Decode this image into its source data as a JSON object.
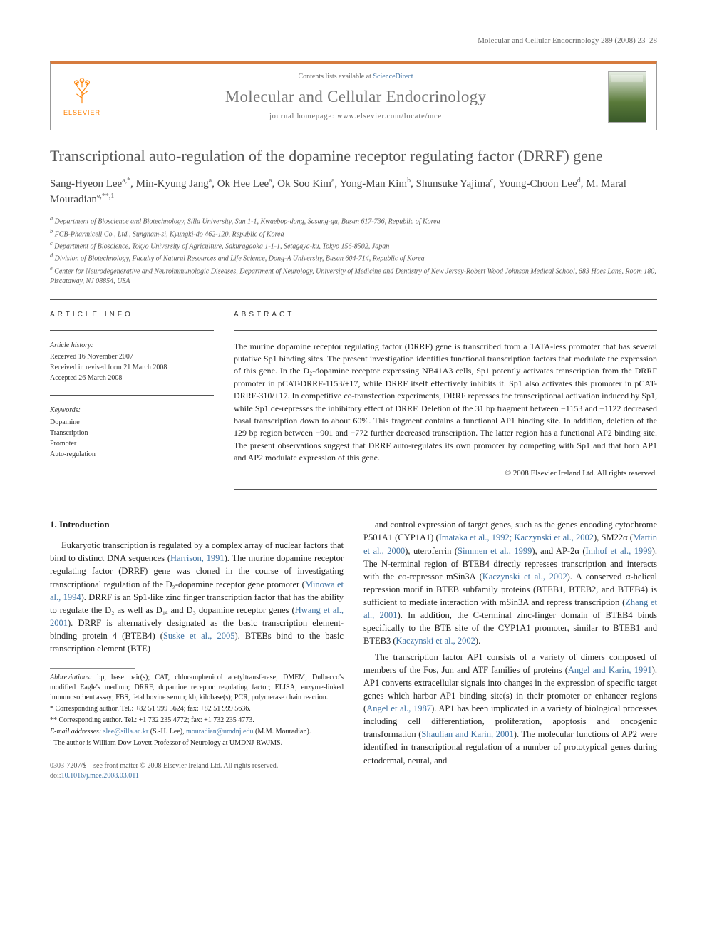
{
  "page_header": "Molecular and Cellular Endocrinology 289 (2008) 23–28",
  "banner": {
    "logo_label": "ELSEVIER",
    "contents_prefix": "Contents lists available at ",
    "contents_link": "ScienceDirect",
    "journal_name": "Molecular and Cellular Endocrinology",
    "homepage": "journal homepage: www.elsevier.com/locate/mce"
  },
  "title": "Transcriptional auto-regulation of the dopamine receptor regulating factor (DRRF) gene",
  "authors_html": "Sang-Hyeon Lee<sup>a,*</sup>, Min-Kyung Jang<sup>a</sup>, Ok Hee Lee<sup>a</sup>, Ok Soo Kim<sup>a</sup>, Yong-Man Kim<sup>b</sup>, Shunsuke Yajima<sup>c</sup>, Young-Choon Lee<sup>d</sup>, M. Maral Mouradian<sup>e,**,1</sup>",
  "affiliations": [
    "a Department of Bioscience and Biotechnology, Silla University, San 1-1, Kwaebop-dong, Sasang-gu, Busan 617-736, Republic of Korea",
    "b FCB-Pharmicell Co., Ltd., Sungnam-si, Kyungki-do 462-120, Republic of Korea",
    "c Department of Bioscience, Tokyo University of Agriculture, Sakuragaoka 1-1-1, Setagaya-ku, Tokyo 156-8502, Japan",
    "d Division of Biotechnology, Faculty of Natural Resources and Life Science, Dong-A University, Busan 604-714, Republic of Korea",
    "e Center for Neurodegenerative and Neuroimmunologic Diseases, Department of Neurology, University of Medicine and Dentistry of New Jersey-Robert Wood Johnson Medical School, 683 Hoes Lane, Room 180, Piscataway, NJ 08854, USA"
  ],
  "info": {
    "head": "ARTICLE INFO",
    "history_label": "Article history:",
    "history": [
      "Received 16 November 2007",
      "Received in revised form 21 March 2008",
      "Accepted 26 March 2008"
    ],
    "keywords_label": "Keywords:",
    "keywords": [
      "Dopamine",
      "Transcription",
      "Promoter",
      "Auto-regulation"
    ]
  },
  "abstract": {
    "head": "ABSTRACT",
    "text": "The murine dopamine receptor regulating factor (DRRF) gene is transcribed from a TATA-less promoter that has several putative Sp1 binding sites. The present investigation identifies functional transcription factors that modulate the expression of this gene. In the D₂-dopamine receptor expressing NB41A3 cells, Sp1 potently activates transcription from the DRRF promoter in pCAT-DRRF-1153/+17, while DRRF itself effectively inhibits it. Sp1 also activates this promoter in pCAT-DRRF-310/+17. In competitive co-transfection experiments, DRRF represses the transcriptional activation induced by Sp1, while Sp1 de-represses the inhibitory effect of DRRF. Deletion of the 31 bp fragment between −1153 and −1122 decreased basal transcription down to about 60%. This fragment contains a functional AP1 binding site. In addition, deletion of the 129 bp region between −901 and −772 further decreased transcription. The latter region has a functional AP2 binding site. The present observations suggest that DRRF auto-regulates its own promoter by competing with Sp1 and that both AP1 and AP2 modulate expression of this gene.",
    "copyright": "© 2008 Elsevier Ireland Ltd. All rights reserved."
  },
  "intro": {
    "head": "1. Introduction",
    "left_paras": [
      "Eukaryotic transcription is regulated by a complex array of nuclear factors that bind to distinct DNA sequences (<a href='#'>Harrison, 1991</a>). The murine dopamine receptor regulating factor (DRRF) gene was cloned in the course of investigating transcriptional regulation of the D₂-dopamine receptor gene promoter (<a href='#'>Minowa et al., 1994</a>). DRRF is an Sp1-like zinc finger transcription factor that has the ability to regulate the D₂ as well as D₁ₐ and D₃ dopamine receptor genes (<a href='#'>Hwang et al., 2001</a>). DRRF is alternatively designated as the basic transcription element-binding protein 4 (BTEB4) (<a href='#'>Suske et al., 2005</a>). BTEBs bind to the basic transcription element (BTE)"
    ],
    "right_paras": [
      "and control expression of target genes, such as the genes encoding cytochrome P501A1 (CYP1A1) (<a href='#'>Imataka et al., 1992; Kaczynski et al., 2002</a>), SM22α (<a href='#'>Martin et al., 2000</a>), uteroferrin (<a href='#'>Simmen et al., 1999</a>), and AP-2α (<a href='#'>Imhof et al., 1999</a>). The N-terminal region of BTEB4 directly represses transcription and interacts with the co-repressor mSin3A (<a href='#'>Kaczynski et al., 2002</a>). A conserved α-helical repression motif in BTEB subfamily proteins (BTEB1, BTEB2, and BTEB4) is sufficient to mediate interaction with mSin3A and repress transcription (<a href='#'>Zhang et al., 2001</a>). In addition, the C-terminal zinc-finger domain of BTEB4 binds specifically to the BTE site of the CYP1A1 promoter, similar to BTEB1 and BTEB3 (<a href='#'>Kaczynski et al., 2002</a>).",
      "The transcription factor AP1 consists of a variety of dimers composed of members of the Fos, Jun and ATF families of proteins (<a href='#'>Angel and Karin, 1991</a>). AP1 converts extracellular signals into changes in the expression of specific target genes which harbor AP1 binding site(s) in their promoter or enhancer regions (<a href='#'>Angel et al., 1987</a>). AP1 has been implicated in a variety of biological processes including cell differentiation, proliferation, apoptosis and oncogenic transformation (<a href='#'>Shaulian and Karin, 2001</a>). The molecular functions of AP2 were identified in transcriptional regulation of a number of prototypical genes during ectodermal, neural, and"
    ]
  },
  "footnotes": {
    "abbrev_label": "Abbreviations:",
    "abbrev": " bp, base pair(s); CAT, chloramphenicol acetyltransferase; DMEM, Dulbecco's modified Eagle's medium; DRRF, dopamine receptor regulating factor; ELISA, enzyme-linked immunosorbent assay; FBS, fetal bovine serum; kb, kilobase(s); PCR, polymerase chain reaction.",
    "corr1": "* Corresponding author. Tel.: +82 51 999 5624; fax: +82 51 999 5636.",
    "corr2": "** Corresponding author. Tel.: +1 732 235 4772; fax: +1 732 235 4773.",
    "email_label": "E-mail addresses:",
    "email1": "slee@silla.ac.kr",
    "email1_who": " (S.-H. Lee), ",
    "email2": "mouradian@umdnj.edu",
    "email2_who": " (M.M. Mouradian).",
    "note1": "¹ The author is William Dow Lovett Professor of Neurology at UMDNJ-RWJMS."
  },
  "bottom": {
    "front_matter": "0303-7207/$ – see front matter © 2008 Elsevier Ireland Ltd. All rights reserved.",
    "doi_prefix": "doi:",
    "doi": "10.1016/j.mce.2008.03.011"
  },
  "colors": {
    "link": "#3b6fa0",
    "accent": "#d67b3e",
    "logo": "#ff8000"
  }
}
